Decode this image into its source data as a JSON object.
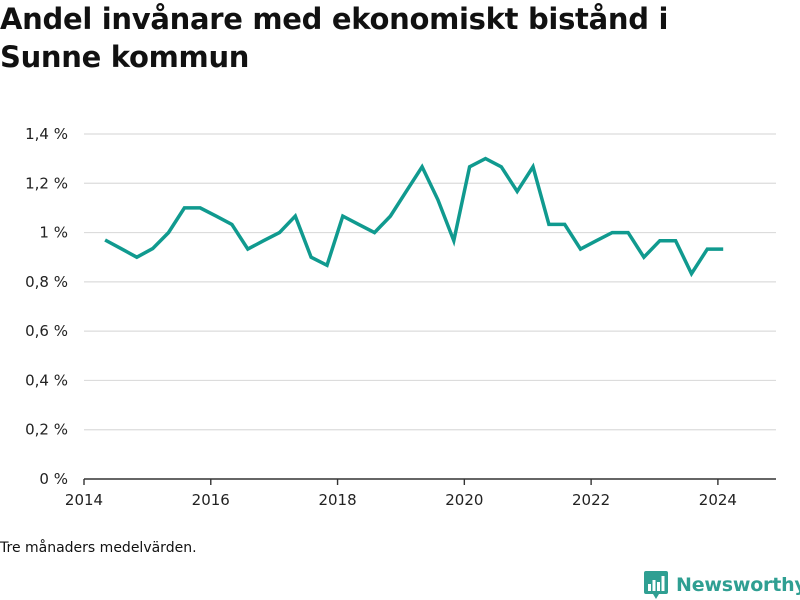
{
  "chart_data": {
    "type": "line",
    "title": "Andel invånare med ekonomiskt bistånd i Sunne kommun",
    "xlabel": "",
    "ylabel": "",
    "x_ticks": [
      "2014",
      "2016",
      "2018",
      "2020",
      "2022",
      "2024"
    ],
    "y_ticks": [
      "0 %",
      "0,2 %",
      "0,4 %",
      "0,6 %",
      "0,8 %",
      "1 %",
      "1,2 %",
      "1,4 %"
    ],
    "ylim": [
      0,
      1.4
    ],
    "xlim": [
      "2014-01",
      "2024-12"
    ],
    "grid": true,
    "legend": "none",
    "colors": {
      "line": "#109a8f",
      "grid": "#dcdcdc",
      "axis": "#333333"
    },
    "series": [
      {
        "x": [
          "2014-05",
          "2014-08",
          "2014-11",
          "2015-02",
          "2015-05",
          "2015-08",
          "2015-11",
          "2016-02",
          "2016-05",
          "2016-08",
          "2016-11",
          "2017-02",
          "2017-05",
          "2017-08",
          "2017-11",
          "2018-02",
          "2018-05",
          "2018-08",
          "2018-11",
          "2019-02",
          "2019-05",
          "2019-08",
          "2019-11",
          "2020-02",
          "2020-05",
          "2020-08",
          "2020-11",
          "2021-02",
          "2021-05",
          "2021-08",
          "2021-11",
          "2022-02",
          "2022-05",
          "2022-08",
          "2022-11",
          "2023-02",
          "2023-05",
          "2023-08",
          "2023-11",
          "2024-02"
        ],
        "values": [
          0.97,
          0.935,
          0.9,
          0.935,
          1.0,
          1.1,
          1.1,
          1.067,
          1.033,
          0.933,
          0.967,
          1.0,
          1.067,
          0.9,
          0.867,
          1.067,
          1.033,
          1.0,
          1.067,
          1.167,
          1.267,
          1.133,
          0.967,
          1.267,
          1.3,
          1.267,
          1.167,
          1.267,
          1.033,
          1.033,
          0.933,
          0.967,
          1.0,
          1.0,
          0.9,
          0.967,
          0.967,
          0.833,
          0.933,
          0.933
        ]
      }
    ]
  },
  "note": "Tre månaders medelvärden.",
  "brand": {
    "name": "Newsworthy",
    "icon": "bar-chart-icon",
    "color": "#2f9f92"
  }
}
